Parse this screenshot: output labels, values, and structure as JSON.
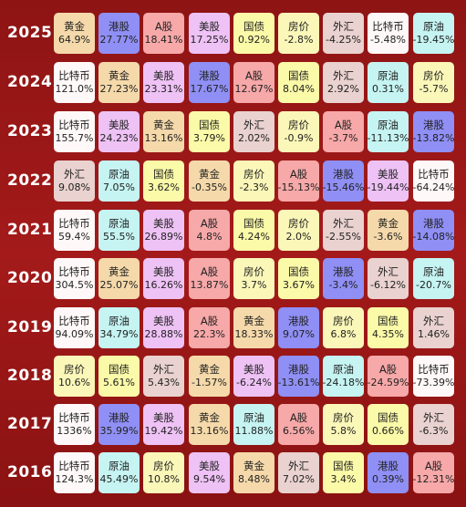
{
  "asset_colors": {
    "黄金": "#f5d9aa",
    "港股": "#8f8ff5",
    "A股": "#f7a8a8",
    "美股": "#eec2f5",
    "国债": "#fbfaa8",
    "房价": "#faf7b8",
    "外汇": "#e9d2cf",
    "比特币": "#fff8f8",
    "原油": "#c5f4f2"
  },
  "rows": [
    {
      "year": "2025",
      "cells": [
        {
          "name": "黄金",
          "pct": "64.9%"
        },
        {
          "name": "港股",
          "pct": "27.77%"
        },
        {
          "name": "A股",
          "pct": "18.41%"
        },
        {
          "name": "美股",
          "pct": "17.25%"
        },
        {
          "name": "国债",
          "pct": "0.92%"
        },
        {
          "name": "房价",
          "pct": "-2.8%"
        },
        {
          "name": "外汇",
          "pct": "-4.25%"
        },
        {
          "name": "比特币",
          "pct": "-5.48%"
        },
        {
          "name": "原油",
          "pct": "-19.45%"
        }
      ]
    },
    {
      "year": "2024",
      "cells": [
        {
          "name": "比特币",
          "pct": "121.0%"
        },
        {
          "name": "黄金",
          "pct": "27.23%"
        },
        {
          "name": "美股",
          "pct": "23.31%"
        },
        {
          "name": "港股",
          "pct": "17.67%"
        },
        {
          "name": "A股",
          "pct": "12.67%"
        },
        {
          "name": "国债",
          "pct": "8.04%"
        },
        {
          "name": "外汇",
          "pct": "2.92%"
        },
        {
          "name": "原油",
          "pct": "0.31%"
        },
        {
          "name": "房价",
          "pct": "-5.7%"
        }
      ]
    },
    {
      "year": "2023",
      "cells": [
        {
          "name": "比特币",
          "pct": "155.7%"
        },
        {
          "name": "美股",
          "pct": "24.23%"
        },
        {
          "name": "黄金",
          "pct": "13.16%"
        },
        {
          "name": "国债",
          "pct": "3.79%"
        },
        {
          "name": "外汇",
          "pct": "2.02%"
        },
        {
          "name": "房价",
          "pct": "-0.9%"
        },
        {
          "name": "A股",
          "pct": "-3.7%"
        },
        {
          "name": "原油",
          "pct": "-11.13%"
        },
        {
          "name": "港股",
          "pct": "-13.82%"
        }
      ]
    },
    {
      "year": "2022",
      "cells": [
        {
          "name": "外汇",
          "pct": "9.08%"
        },
        {
          "name": "原油",
          "pct": "7.05%"
        },
        {
          "name": "国债",
          "pct": "3.62%"
        },
        {
          "name": "黄金",
          "pct": "-0.35%"
        },
        {
          "name": "房价",
          "pct": "-2.3%"
        },
        {
          "name": "A股",
          "pct": "-15.13%"
        },
        {
          "name": "港股",
          "pct": "-15.46%"
        },
        {
          "name": "美股",
          "pct": "-19.44%"
        },
        {
          "name": "比特币",
          "pct": "-64.24%"
        }
      ]
    },
    {
      "year": "2021",
      "cells": [
        {
          "name": "比特币",
          "pct": "59.4%"
        },
        {
          "name": "原油",
          "pct": "55.5%"
        },
        {
          "name": "美股",
          "pct": "26.89%"
        },
        {
          "name": "A股",
          "pct": "4.8%"
        },
        {
          "name": "国债",
          "pct": "4.24%"
        },
        {
          "name": "房价",
          "pct": "2.0%"
        },
        {
          "name": "外汇",
          "pct": "-2.55%"
        },
        {
          "name": "黄金",
          "pct": "-3.6%"
        },
        {
          "name": "港股",
          "pct": "-14.08%"
        }
      ]
    },
    {
      "year": "2020",
      "cells": [
        {
          "name": "比特币",
          "pct": "304.5%"
        },
        {
          "name": "黄金",
          "pct": "25.07%"
        },
        {
          "name": "美股",
          "pct": "16.26%"
        },
        {
          "name": "A股",
          "pct": "13.87%"
        },
        {
          "name": "房价",
          "pct": "3.7%"
        },
        {
          "name": "国债",
          "pct": "3.67%"
        },
        {
          "name": "港股",
          "pct": "-3.4%"
        },
        {
          "name": "外汇",
          "pct": "-6.12%"
        },
        {
          "name": "原油",
          "pct": "-20.7%"
        }
      ]
    },
    {
      "year": "2019",
      "cells": [
        {
          "name": "比特币",
          "pct": "94.09%"
        },
        {
          "name": "原油",
          "pct": "34.79%"
        },
        {
          "name": "美股",
          "pct": "28.88%"
        },
        {
          "name": "A股",
          "pct": "22.3%"
        },
        {
          "name": "黄金",
          "pct": "18.33%"
        },
        {
          "name": "港股",
          "pct": "9.07%"
        },
        {
          "name": "房价",
          "pct": "6.8%"
        },
        {
          "name": "国债",
          "pct": "4.35%"
        },
        {
          "name": "外汇",
          "pct": "1.46%"
        }
      ]
    },
    {
      "year": "2018",
      "cells": [
        {
          "name": "房价",
          "pct": "10.6%"
        },
        {
          "name": "国债",
          "pct": "5.61%"
        },
        {
          "name": "外汇",
          "pct": "5.43%"
        },
        {
          "name": "黄金",
          "pct": "-1.57%"
        },
        {
          "name": "美股",
          "pct": "-6.24%"
        },
        {
          "name": "港股",
          "pct": "-13.61%"
        },
        {
          "name": "原油",
          "pct": "-24.18%"
        },
        {
          "name": "A股",
          "pct": "-24.59%"
        },
        {
          "name": "比特币",
          "pct": "-73.39%"
        }
      ]
    },
    {
      "year": "2017",
      "cells": [
        {
          "name": "比特币",
          "pct": "1336%"
        },
        {
          "name": "港股",
          "pct": "35.99%"
        },
        {
          "name": "美股",
          "pct": "19.42%"
        },
        {
          "name": "黄金",
          "pct": "13.16%"
        },
        {
          "name": "原油",
          "pct": "11.88%"
        },
        {
          "name": "A股",
          "pct": "6.56%"
        },
        {
          "name": "房价",
          "pct": "5.8%"
        },
        {
          "name": "国债",
          "pct": "0.66%"
        },
        {
          "name": "外汇",
          "pct": "-6.3%"
        }
      ]
    },
    {
      "year": "2016",
      "cells": [
        {
          "name": "比特币",
          "pct": "124.3%"
        },
        {
          "name": "原油",
          "pct": "45.49%"
        },
        {
          "name": "房价",
          "pct": "10.8%"
        },
        {
          "name": "美股",
          "pct": "9.54%"
        },
        {
          "name": "黄金",
          "pct": "8.48%"
        },
        {
          "name": "外汇",
          "pct": "7.02%"
        },
        {
          "name": "国债",
          "pct": "3.4%"
        },
        {
          "name": "港股",
          "pct": "0.39%"
        },
        {
          "name": "A股",
          "pct": "-12.31%"
        }
      ]
    }
  ]
}
